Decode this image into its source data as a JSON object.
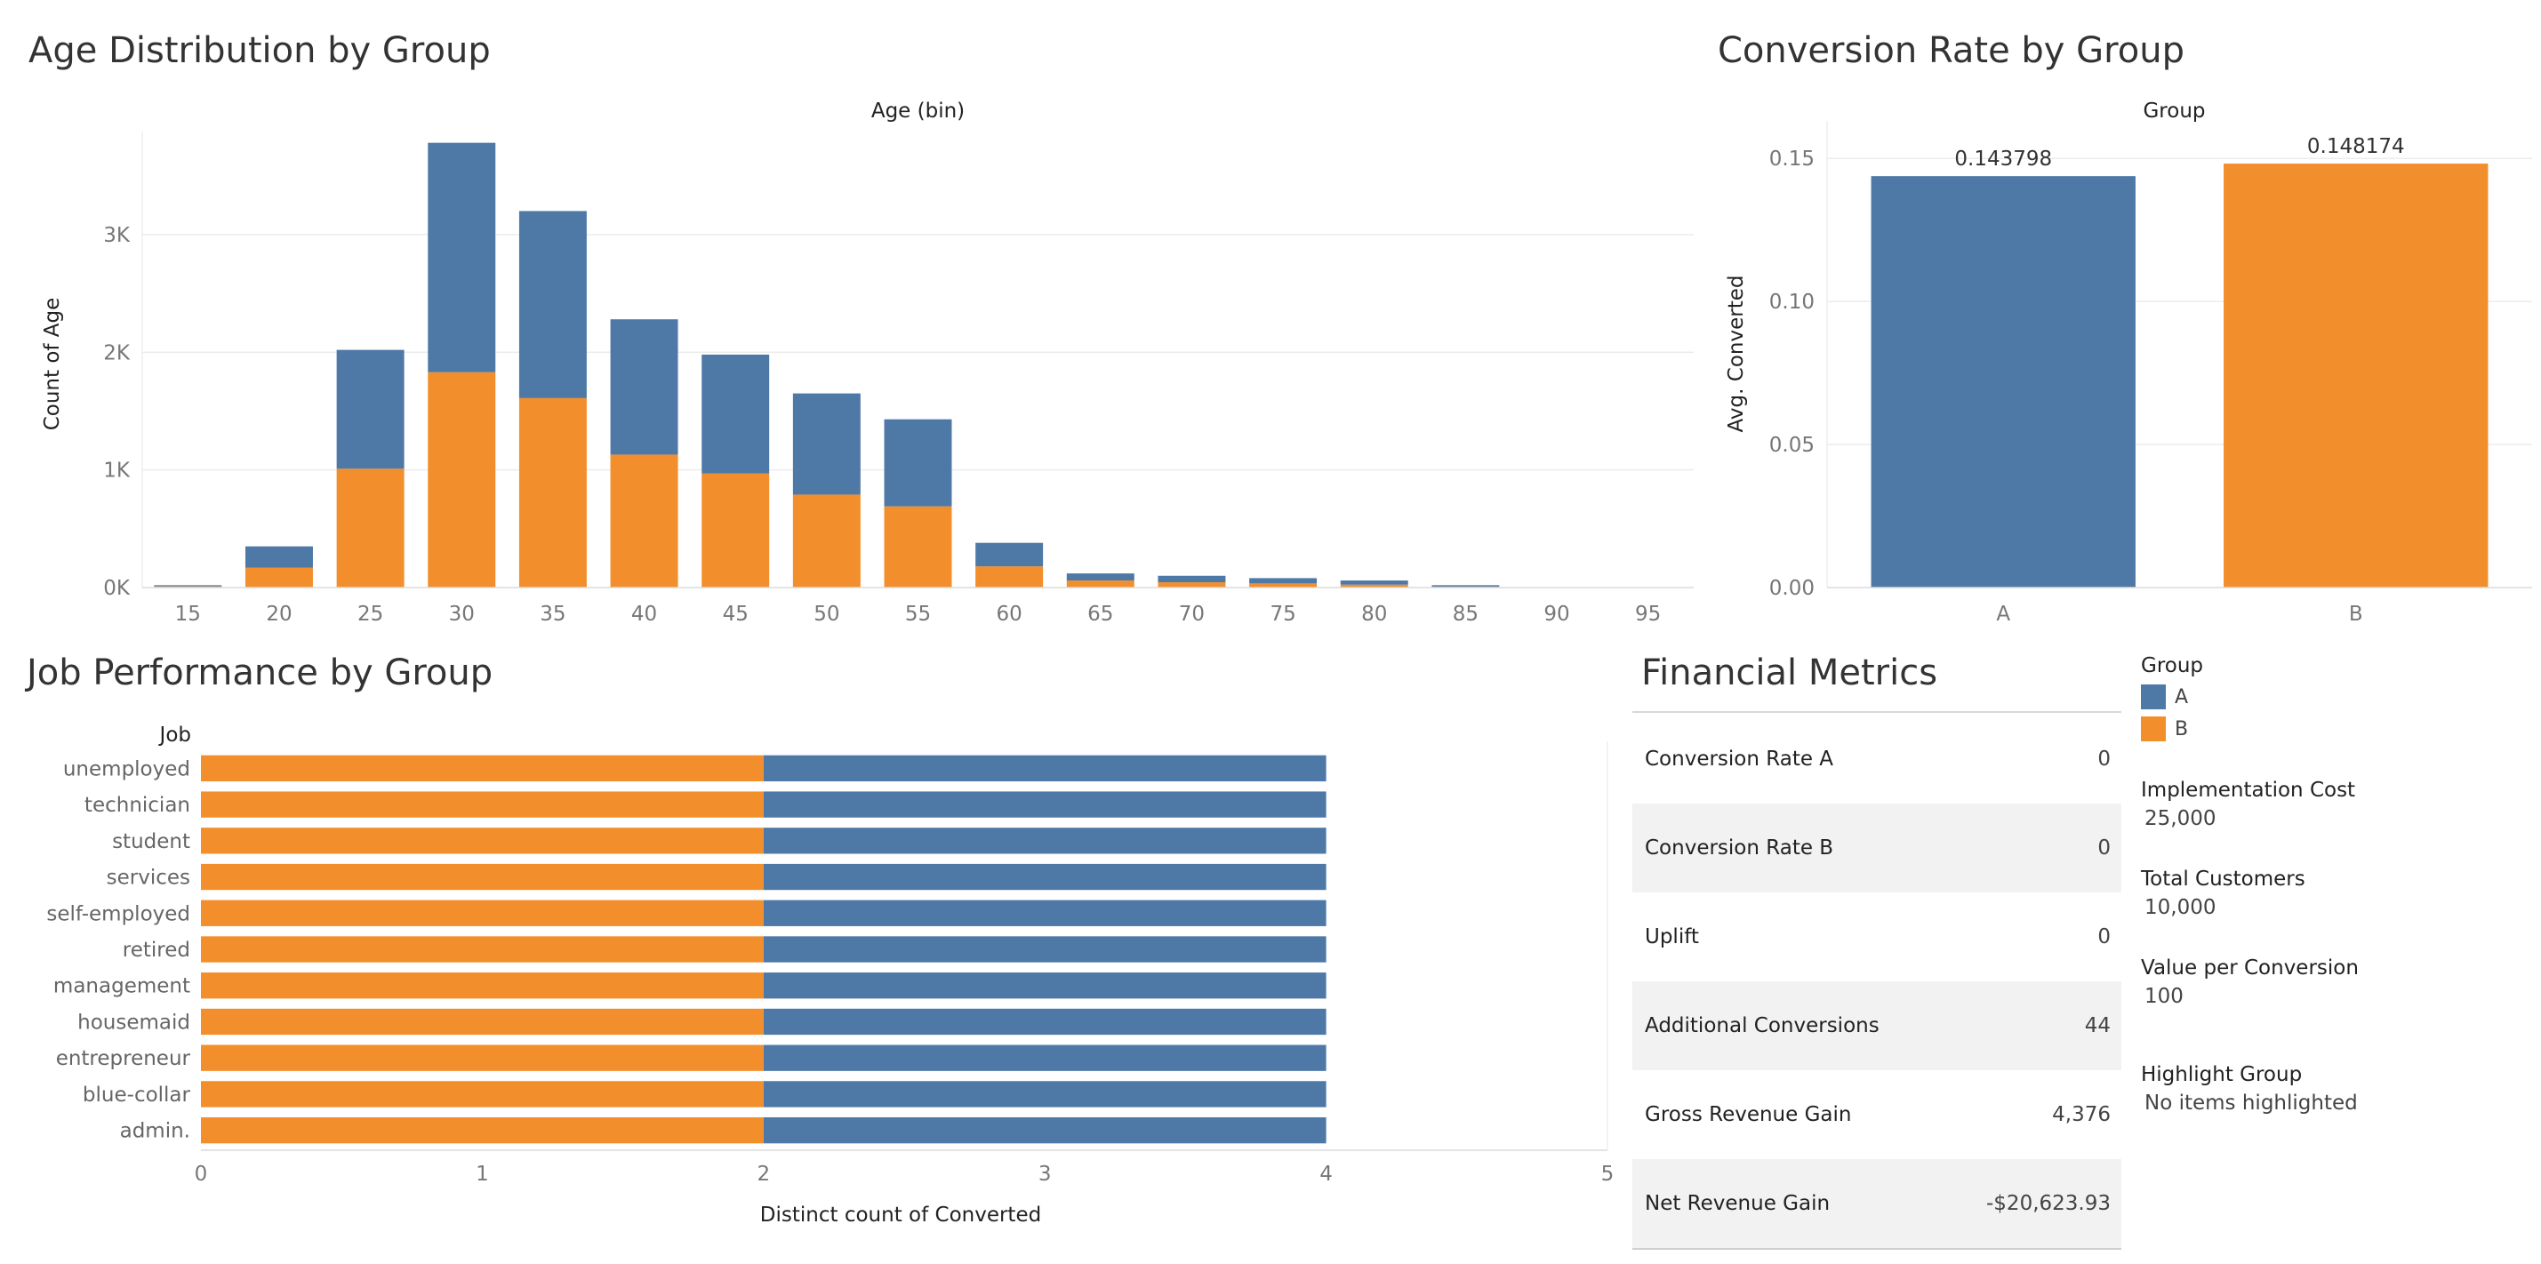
{
  "dashboard": {
    "age_title": "Age Distribution by Group",
    "conv_title": "Conversion Rate by Group",
    "job_title": "Job Performance by Group",
    "fin_title": "Financial Metrics"
  },
  "colors": {
    "A": "#4e79a7",
    "B": "#f28e2b"
  },
  "chart_data": [
    {
      "type": "bar",
      "stacked": true,
      "title": "Age Distribution by Group",
      "xlabel": "Age (bin)",
      "ylabel": "Count of Age",
      "categories": [
        "15",
        "20",
        "25",
        "30",
        "35",
        "40",
        "45",
        "50",
        "55",
        "60",
        "65",
        "70",
        "75",
        "80",
        "85",
        "90",
        "95"
      ],
      "series": [
        {
          "name": "B",
          "values": [
            10,
            170,
            1010,
            1830,
            1610,
            1130,
            970,
            790,
            690,
            180,
            60,
            45,
            35,
            25,
            8,
            0,
            0
          ]
        },
        {
          "name": "A",
          "values": [
            10,
            180,
            1010,
            1950,
            1590,
            1150,
            1010,
            860,
            740,
            200,
            60,
            55,
            45,
            35,
            12,
            0,
            0
          ]
        }
      ],
      "yticks": [
        "0K",
        "1K",
        "2K",
        "3K"
      ],
      "ylim": [
        0,
        3800
      ],
      "grid": true
    },
    {
      "type": "bar",
      "title": "Conversion Rate by Group",
      "xlabel": "Group",
      "ylabel": "Avg. Converted",
      "categories": [
        "A",
        "B"
      ],
      "values": [
        0.143798,
        0.148174
      ],
      "data_labels": [
        "0.143798",
        "0.148174"
      ],
      "yticks": [
        "0.00",
        "0.05",
        "0.10",
        "0.15"
      ],
      "ylim": [
        0,
        0.16
      ],
      "grid": true
    },
    {
      "type": "bar",
      "orientation": "horizontal",
      "stacked": true,
      "title": "Job Performance by Group",
      "xlabel": "Distinct count of Converted",
      "ylabel": "Job",
      "categories": [
        "unemployed",
        "technician",
        "student",
        "services",
        "self-employed",
        "retired",
        "management",
        "housemaid",
        "entrepreneur",
        "blue-collar",
        "admin."
      ],
      "series": [
        {
          "name": "B",
          "values": [
            2,
            2,
            2,
            2,
            2,
            2,
            2,
            2,
            2,
            2,
            2
          ]
        },
        {
          "name": "A",
          "values": [
            2,
            2,
            2,
            2,
            2,
            2,
            2,
            2,
            2,
            2,
            2
          ]
        }
      ],
      "xticks": [
        "0",
        "1",
        "2",
        "3",
        "4",
        "5"
      ],
      "xlim": [
        0,
        5
      ],
      "grid": false
    }
  ],
  "metrics": [
    {
      "label": "Conversion Rate A",
      "value": "0"
    },
    {
      "label": "Conversion Rate B",
      "value": "0"
    },
    {
      "label": "Uplift",
      "value": "0"
    },
    {
      "label": "Additional Conversions",
      "value": "44"
    },
    {
      "label": "Gross Revenue Gain",
      "value": "4,376"
    },
    {
      "label": "Net Revenue Gain",
      "value": "-$20,623.93"
    }
  ],
  "legend": {
    "title": "Group",
    "items": [
      {
        "label": "A",
        "color": "#4e79a7"
      },
      {
        "label": "B",
        "color": "#f28e2b"
      }
    ]
  },
  "parameters": [
    {
      "label": "Implementation Cost",
      "value": "25,000"
    },
    {
      "label": "Total Customers",
      "value": "10,000"
    },
    {
      "label": "Value per Conversion",
      "value": "100"
    }
  ],
  "highlight": {
    "label": "Highlight Group",
    "value": "No items highlighted"
  }
}
